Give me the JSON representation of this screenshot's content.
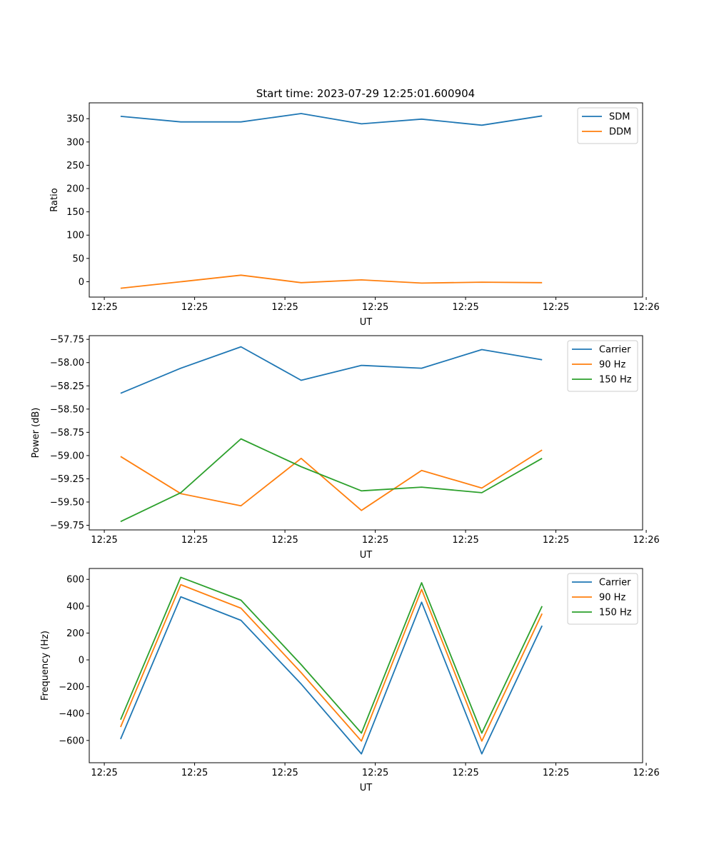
{
  "figure": {
    "title": "Start time: 2023-07-29 12:25:01.600904"
  },
  "colors": {
    "blue": "#1f77b4",
    "orange": "#ff7f0e",
    "green": "#2ca02c"
  },
  "chart_data": [
    {
      "type": "line",
      "title": "Start time: 2023-07-29 12:25:01.600904",
      "xlabel": "UT",
      "ylabel": "Ratio",
      "x": [
        1,
        2,
        3,
        4,
        5,
        6,
        7,
        8
      ],
      "xlim": [
        0.48,
        9.67
      ],
      "xticks": [
        0.73,
        2.23,
        3.73,
        5.23,
        6.73,
        8.23,
        9.73
      ],
      "xtick_labels": [
        "12:25",
        "12:25",
        "12:25",
        "12:25",
        "12:25",
        "12:25",
        "12:26"
      ],
      "ylim": [
        -33,
        384
      ],
      "yticks": [
        0,
        50,
        100,
        150,
        200,
        250,
        300,
        350
      ],
      "ytick_labels": [
        "0",
        "50",
        "100",
        "150",
        "200",
        "250",
        "300",
        "350"
      ],
      "legend": "top-right",
      "series": [
        {
          "name": "SDM",
          "color": "#1f77b4",
          "values": [
            355,
            343,
            343,
            361,
            339,
            349,
            336,
            356
          ]
        },
        {
          "name": "DDM",
          "color": "#ff7f0e",
          "values": [
            -14,
            0,
            14,
            -2,
            4,
            -3,
            -1,
            -2
          ]
        }
      ]
    },
    {
      "type": "line",
      "title": "",
      "xlabel": "UT",
      "ylabel": "Power (dB)",
      "x": [
        1,
        2,
        3,
        4,
        5,
        6,
        7,
        8
      ],
      "xlim": [
        0.48,
        9.67
      ],
      "xticks": [
        0.73,
        2.23,
        3.73,
        5.23,
        6.73,
        8.23,
        9.73
      ],
      "xtick_labels": [
        "12:25",
        "12:25",
        "12:25",
        "12:25",
        "12:25",
        "12:25",
        "12:26"
      ],
      "ylim": [
        -59.8,
        -57.71
      ],
      "yticks": [
        -59.75,
        -59.5,
        -59.25,
        -59.0,
        -58.75,
        -58.5,
        -58.25,
        -58.0,
        -57.75
      ],
      "ytick_labels": [
        "−59.75",
        "−59.50",
        "−59.25",
        "−59.00",
        "−58.75",
        "−58.50",
        "−58.25",
        "−58.00",
        "−57.75"
      ],
      "legend": "top-right",
      "series": [
        {
          "name": "Carrier",
          "color": "#1f77b4",
          "values": [
            -58.33,
            -58.06,
            -57.83,
            -58.19,
            -58.03,
            -58.06,
            -57.86,
            -57.97
          ]
        },
        {
          "name": "90 Hz",
          "color": "#ff7f0e",
          "values": [
            -59.01,
            -59.41,
            -59.54,
            -59.03,
            -59.59,
            -59.16,
            -59.35,
            -58.94
          ]
        },
        {
          "name": "150 Hz",
          "color": "#2ca02c",
          "values": [
            -59.71,
            -59.4,
            -58.82,
            -59.12,
            -59.38,
            -59.34,
            -59.4,
            -59.03
          ]
        }
      ]
    },
    {
      "type": "line",
      "title": "",
      "xlabel": "UT",
      "ylabel": "Frequency (Hz)",
      "x": [
        1,
        2,
        3,
        4,
        5,
        6,
        7,
        8
      ],
      "xlim": [
        0.48,
        9.67
      ],
      "xticks": [
        0.73,
        2.23,
        3.73,
        5.23,
        6.73,
        8.23,
        9.73
      ],
      "xtick_labels": [
        "12:25",
        "12:25",
        "12:25",
        "12:25",
        "12:25",
        "12:25",
        "12:26"
      ],
      "ylim": [
        -766,
        681
      ],
      "yticks": [
        -600,
        -400,
        -200,
        0,
        200,
        400,
        600
      ],
      "ytick_labels": [
        "−600",
        "−400",
        "−200",
        "0",
        "200",
        "400",
        "600"
      ],
      "legend": "top-right",
      "series": [
        {
          "name": "Carrier",
          "color": "#1f77b4",
          "values": [
            -590,
            470,
            295,
            -180,
            -700,
            430,
            -700,
            255
          ]
        },
        {
          "name": "90 Hz",
          "color": "#ff7f0e",
          "values": [
            -500,
            560,
            385,
            -95,
            -605,
            525,
            -605,
            345
          ]
        },
        {
          "name": "150 Hz",
          "color": "#2ca02c",
          "values": [
            -445,
            615,
            445,
            -35,
            -545,
            575,
            -545,
            400
          ]
        }
      ]
    }
  ]
}
